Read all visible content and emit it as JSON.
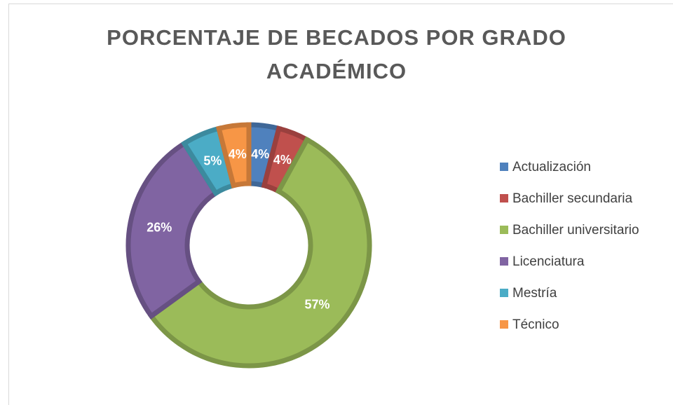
{
  "chart_data": {
    "type": "pie",
    "title": "PORCENTAJE DE BECADOS POR GRADO ACADÉMICO",
    "categories": [
      "Actualización",
      "Bachiller secundaria",
      "Bachiller universitario",
      "Licenciatura",
      "Mestría",
      "Técnico"
    ],
    "values": [
      4,
      4,
      57,
      26,
      5,
      4
    ],
    "value_labels": [
      "4%",
      "4%",
      "57%",
      "26%",
      "5%",
      "4%"
    ],
    "colors": [
      "#4f81bd",
      "#c0504d",
      "#9bbb59",
      "#8064a2",
      "#4bacc6",
      "#f79646"
    ],
    "donut": true,
    "legend": "right"
  }
}
